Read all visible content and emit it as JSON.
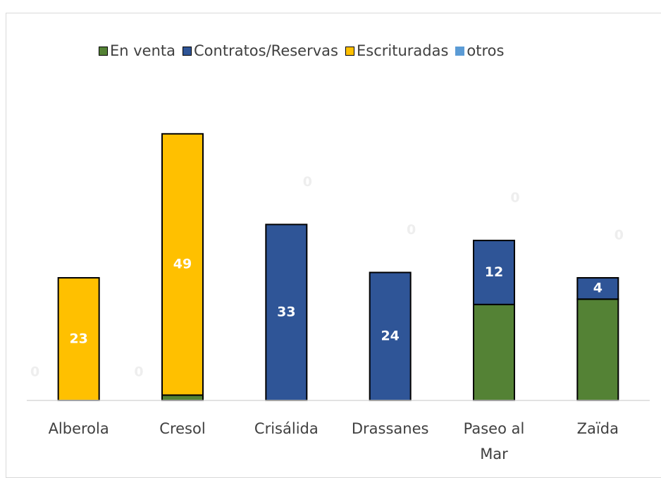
{
  "chart_data": {
    "type": "stacked_bar",
    "categories": [
      "Alberola",
      "Cresol",
      "Crisálida",
      "Drassanes",
      "Paseo al Mar",
      "Zaïda"
    ],
    "series": [
      {
        "name": "En venta",
        "color": "#548235",
        "values": [
          0,
          1,
          0,
          0,
          18,
          19
        ],
        "data_labels": false
      },
      {
        "name": "Contratos/Reservas",
        "color": "#2f5597",
        "values": [
          0,
          0,
          33,
          24,
          12,
          4
        ],
        "data_labels": true
      },
      {
        "name": "Escrituradas",
        "color": "#ffc000",
        "values": [
          23,
          49,
          0,
          0,
          0,
          0
        ],
        "data_labels": true
      },
      {
        "name": "otros",
        "color": "#5b9bd5",
        "values": [
          0,
          0,
          0,
          0,
          0,
          0
        ],
        "data_labels": true
      }
    ],
    "ylim": [
      0,
      55
    ]
  }
}
